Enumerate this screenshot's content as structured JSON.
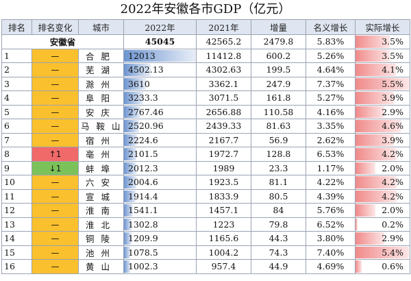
{
  "title": "2022年安徽各市GDP（亿元）",
  "headers": [
    "排名",
    "排名变化",
    "城市",
    "2022年",
    "2021年",
    "增量",
    "名义增长",
    "实际增长"
  ],
  "province": {
    "name": "安徽省",
    "v2022": "45045",
    "v2021": "42565.2",
    "increase": "2479.8",
    "nominal": "5.83%",
    "real": "3.5%",
    "real_value": 3.5
  },
  "rows": [
    {
      "rank": "1",
      "change": "—",
      "change_type": "same",
      "city": "合肥",
      "v2022": "12013",
      "v2022_value": 12013,
      "v2021": "11412.8",
      "increase": "600.2",
      "nominal": "5.26%",
      "real": "3.5%",
      "real_value": 3.5
    },
    {
      "rank": "2",
      "change": "—",
      "change_type": "same",
      "city": "芜湖",
      "v2022": "4502.13",
      "v2022_value": 4502.13,
      "v2021": "4302.63",
      "increase": "199.5",
      "nominal": "4.64%",
      "real": "4.1%",
      "real_value": 4.1
    },
    {
      "rank": "3",
      "change": "—",
      "change_type": "same",
      "city": "滁州",
      "v2022": "3610",
      "v2022_value": 3610,
      "v2021": "3362.1",
      "increase": "247.9",
      "nominal": "7.37%",
      "real": "5.5%",
      "real_value": 5.5
    },
    {
      "rank": "4",
      "change": "—",
      "change_type": "same",
      "city": "阜阳",
      "v2022": "3233.3",
      "v2022_value": 3233.3,
      "v2021": "3071.5",
      "increase": "161.8",
      "nominal": "5.27%",
      "real": "3.9%",
      "real_value": 3.9
    },
    {
      "rank": "5",
      "change": "—",
      "change_type": "same",
      "city": "安庆",
      "v2022": "2767.46",
      "v2022_value": 2767.46,
      "v2021": "2656.88",
      "increase": "110.58",
      "nominal": "4.16%",
      "real": "2.9%",
      "real_value": 2.9
    },
    {
      "rank": "6",
      "change": "—",
      "change_type": "same",
      "city": "马鞍山",
      "v2022": "2520.96",
      "v2022_value": 2520.96,
      "v2021": "2439.33",
      "increase": "81.63",
      "nominal": "3.35%",
      "real": "4.6%",
      "real_value": 4.6
    },
    {
      "rank": "7",
      "change": "—",
      "change_type": "same",
      "city": "宿州",
      "v2022": "2224.6",
      "v2022_value": 2224.6,
      "v2021": "2167.7",
      "increase": "56.9",
      "nominal": "2.62%",
      "real": "3.9%",
      "real_value": 3.9
    },
    {
      "rank": "8",
      "change": "↑1",
      "change_type": "up",
      "city": "亳州",
      "v2022": "2101.5",
      "v2022_value": 2101.5,
      "v2021": "1972.7",
      "increase": "128.8",
      "nominal": "6.53%",
      "real": "4.2%",
      "real_value": 4.2
    },
    {
      "rank": "9",
      "change": "↓1",
      "change_type": "down",
      "city": "蚌埠",
      "v2022": "2012.3",
      "v2022_value": 2012.3,
      "v2021": "1989",
      "increase": "23.3",
      "nominal": "1.17%",
      "real": "2.0%",
      "real_value": 2.0
    },
    {
      "rank": "10",
      "change": "—",
      "change_type": "same",
      "city": "六安",
      "v2022": "2004.6",
      "v2022_value": 2004.6,
      "v2021": "1923.5",
      "increase": "81.1",
      "nominal": "4.22%",
      "real": "4.2%",
      "real_value": 4.2
    },
    {
      "rank": "11",
      "change": "—",
      "change_type": "same",
      "city": "宣城",
      "v2022": "1914.4",
      "v2022_value": 1914.4,
      "v2021": "1833.9",
      "increase": "80.5",
      "nominal": "4.39%",
      "real": "4.2%",
      "real_value": 4.2
    },
    {
      "rank": "12",
      "change": "—",
      "change_type": "same",
      "city": "淮南",
      "v2022": "1541.1",
      "v2022_value": 1541.1,
      "v2021": "1457.1",
      "increase": "84",
      "nominal": "5.76%",
      "real": "2.0%",
      "real_value": 2.0
    },
    {
      "rank": "13",
      "change": "—",
      "change_type": "same",
      "city": "淮北",
      "v2022": "1302.8",
      "v2022_value": 1302.8,
      "v2021": "1223",
      "increase": "79.8",
      "nominal": "6.52%",
      "real": "0.2%",
      "real_value": 0.2
    },
    {
      "rank": "14",
      "change": "—",
      "change_type": "same",
      "city": "铜陵",
      "v2022": "1209.9",
      "v2022_value": 1209.9,
      "v2021": "1165.6",
      "increase": "44.3",
      "nominal": "3.80%",
      "real": "2.9%",
      "real_value": 2.9
    },
    {
      "rank": "15",
      "change": "—",
      "change_type": "same",
      "city": "池州",
      "v2022": "1078.5",
      "v2022_value": 1078.5,
      "v2021": "1004.2",
      "increase": "74.3",
      "nominal": "7.40%",
      "real": "5.4%",
      "real_value": 5.4
    },
    {
      "rank": "16",
      "change": "—",
      "change_type": "same",
      "city": "黄山",
      "v2022": "1002.3",
      "v2022_value": 1002.3,
      "v2021": "957.4",
      "increase": "44.9",
      "nominal": "4.69%",
      "real": "0.6%",
      "real_value": 0.6
    }
  ]
}
